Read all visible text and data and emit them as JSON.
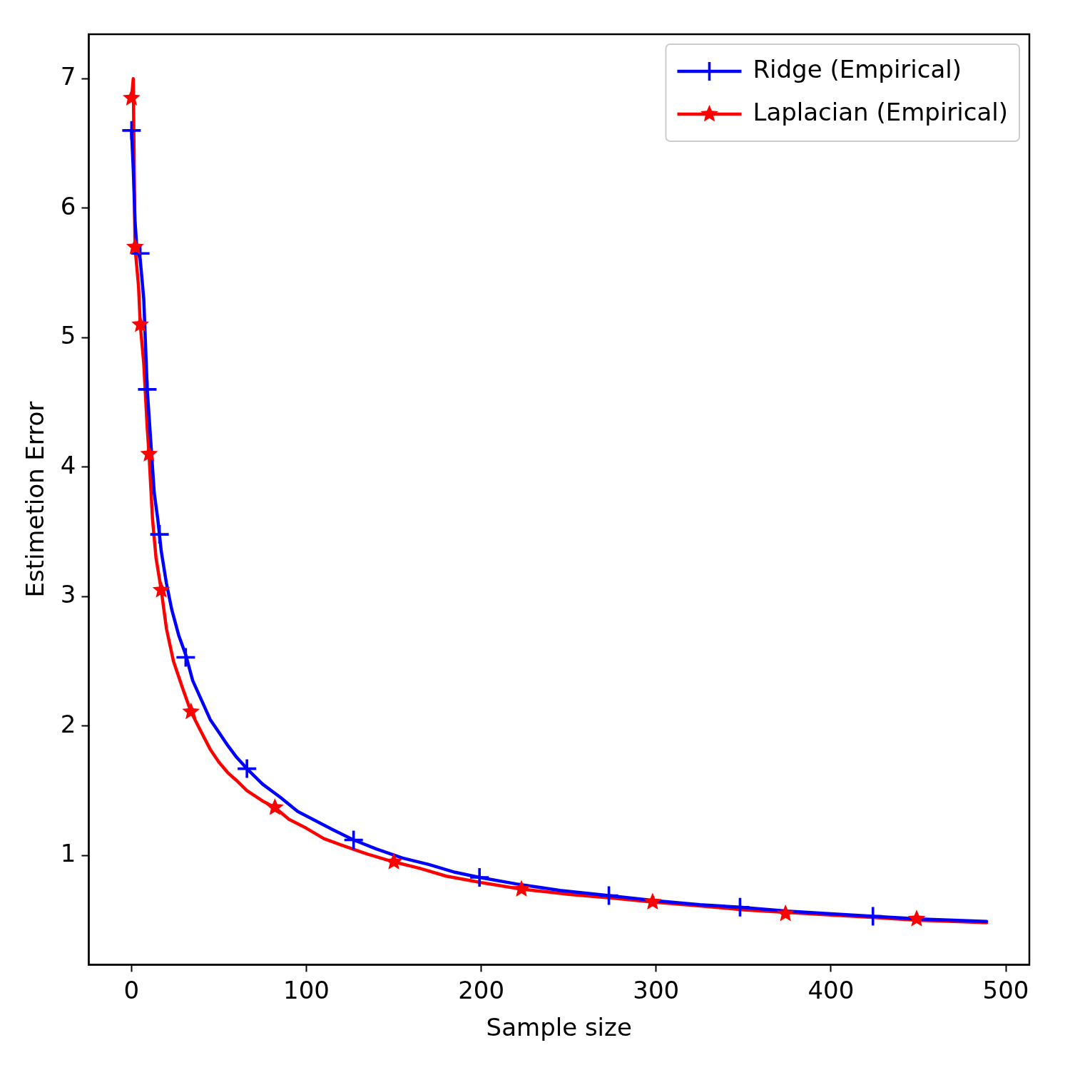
{
  "chart_data": {
    "type": "line",
    "xlabel": "Sample size",
    "ylabel": "Estimetion Error",
    "xlim": [
      -24.45,
      513.45
    ],
    "ylim": [
      0.156,
      7.343
    ],
    "xticks": [
      0,
      100,
      200,
      300,
      400,
      500
    ],
    "yticks": [
      1,
      2,
      3,
      4,
      5,
      6,
      7
    ],
    "legend": "top right",
    "series": [
      {
        "name": "Ridge (Empirical)",
        "color": "#0000ff",
        "x": [
          0,
          1,
          2,
          3,
          5,
          7,
          9,
          11,
          13,
          15,
          17,
          20,
          23,
          27,
          31,
          35,
          40,
          45,
          50,
          55,
          60,
          66,
          75,
          85,
          95,
          105,
          115,
          127,
          140,
          155,
          170,
          185,
          199,
          220,
          245,
          273,
          300,
          325,
          348,
          375,
          400,
          424,
          450,
          470,
          489
        ],
        "values": [
          6.6,
          6.3,
          5.9,
          5.7,
          5.6,
          5.3,
          4.6,
          4.2,
          3.8,
          3.6,
          3.35,
          3.1,
          2.9,
          2.7,
          2.55,
          2.35,
          2.2,
          2.05,
          1.95,
          1.85,
          1.76,
          1.67,
          1.55,
          1.45,
          1.34,
          1.27,
          1.2,
          1.12,
          1.05,
          0.98,
          0.93,
          0.87,
          0.83,
          0.78,
          0.73,
          0.69,
          0.65,
          0.62,
          0.6,
          0.57,
          0.55,
          0.53,
          0.51,
          0.5,
          0.49
        ]
      },
      {
        "name": "Laplacian (Empirical)",
        "color": "#ff0000",
        "x": [
          0,
          1,
          2,
          4,
          5,
          7,
          9,
          10,
          12,
          14,
          17,
          20,
          24,
          29,
          34,
          40,
          45,
          50,
          55,
          60,
          66,
          75,
          82,
          90,
          100,
          110,
          120,
          135,
          150,
          165,
          180,
          200,
          223,
          250,
          275,
          298,
          325,
          350,
          374,
          400,
          425,
          449,
          470,
          489
        ],
        "values": [
          6.85,
          7.0,
          5.7,
          5.4,
          5.1,
          4.8,
          4.3,
          4.1,
          3.6,
          3.3,
          3.05,
          2.75,
          2.5,
          2.3,
          2.11,
          1.95,
          1.82,
          1.72,
          1.64,
          1.58,
          1.5,
          1.42,
          1.37,
          1.28,
          1.21,
          1.13,
          1.08,
          1.01,
          0.95,
          0.9,
          0.84,
          0.79,
          0.74,
          0.7,
          0.67,
          0.64,
          0.61,
          0.58,
          0.56,
          0.54,
          0.52,
          0.5,
          0.49,
          0.48
        ]
      },
      {
        "type": "scatter",
        "color": "#0000ff",
        "marker": "cross",
        "x": [
          0,
          5,
          9,
          16,
          31,
          66,
          127,
          199,
          273,
          348,
          424
        ],
        "values": [
          6.6,
          5.65,
          4.6,
          3.48,
          2.53,
          1.67,
          1.12,
          0.83,
          0.69,
          0.6,
          0.53
        ]
      },
      {
        "type": "scatter",
        "color": "#ff0000",
        "marker": "star",
        "x": [
          0,
          2,
          5,
          10,
          17,
          34,
          82,
          150,
          223,
          298,
          374,
          449
        ],
        "values": [
          6.85,
          5.7,
          5.1,
          4.1,
          3.05,
          2.11,
          1.37,
          0.95,
          0.74,
          0.64,
          0.55,
          0.51
        ]
      }
    ]
  }
}
